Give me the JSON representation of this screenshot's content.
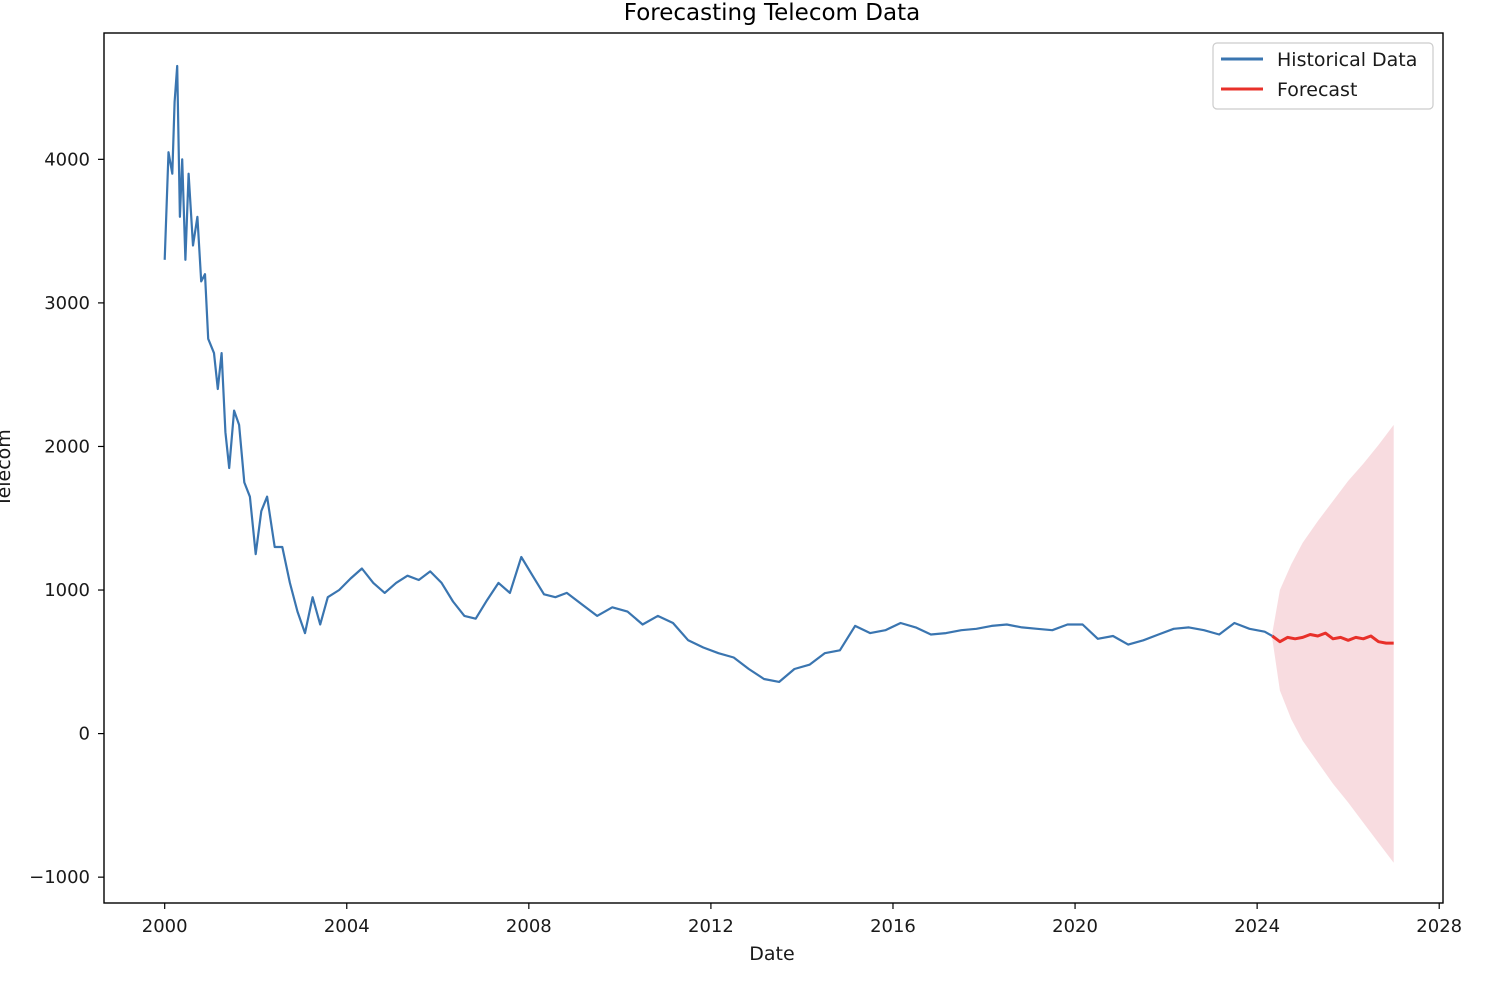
{
  "chart_data": {
    "type": "line",
    "title": "Forecasting Telecom Data",
    "xlabel": "Date",
    "ylabel": "Telecom",
    "xlim": [
      "1998-09-01",
      "2028-02-01"
    ],
    "ylim": [
      -1180,
      4880
    ],
    "xticks": [
      "2000",
      "2004",
      "2008",
      "2012",
      "2016",
      "2020",
      "2024",
      "2028"
    ],
    "yticks": [
      -1000,
      0,
      1000,
      2000,
      3000,
      4000
    ],
    "grid": false,
    "legend": {
      "position": "top-right",
      "entries": [
        {
          "label": "Historical Data",
          "color": "#3a75b0"
        },
        {
          "label": "Forecast",
          "color": "#e8302a"
        }
      ]
    },
    "series": [
      {
        "name": "Historical Data",
        "color": "#3a75b0",
        "points": [
          [
            "2000-01-01",
            3300
          ],
          [
            "2000-02-01",
            4050
          ],
          [
            "2000-03-01",
            3900
          ],
          [
            "2000-03-20",
            4400
          ],
          [
            "2000-04-10",
            4650
          ],
          [
            "2000-05-01",
            3600
          ],
          [
            "2000-05-20",
            4000
          ],
          [
            "2000-06-15",
            3300
          ],
          [
            "2000-07-10",
            3900
          ],
          [
            "2000-08-15",
            3400
          ],
          [
            "2000-09-20",
            3600
          ],
          [
            "2000-10-20",
            3150
          ],
          [
            "2000-11-20",
            3200
          ],
          [
            "2000-12-15",
            2750
          ],
          [
            "2001-02-01",
            2650
          ],
          [
            "2001-03-01",
            2400
          ],
          [
            "2001-04-01",
            2650
          ],
          [
            "2001-05-01",
            2100
          ],
          [
            "2001-06-01",
            1850
          ],
          [
            "2001-07-10",
            2250
          ],
          [
            "2001-08-20",
            2150
          ],
          [
            "2001-10-01",
            1750
          ],
          [
            "2001-11-15",
            1650
          ],
          [
            "2002-01-01",
            1250
          ],
          [
            "2002-02-15",
            1550
          ],
          [
            "2002-04-01",
            1650
          ],
          [
            "2002-06-01",
            1300
          ],
          [
            "2002-08-01",
            1300
          ],
          [
            "2002-10-01",
            1050
          ],
          [
            "2002-12-01",
            850
          ],
          [
            "2003-02-01",
            700
          ],
          [
            "2003-04-01",
            950
          ],
          [
            "2003-06-01",
            760
          ],
          [
            "2003-08-01",
            950
          ],
          [
            "2003-11-01",
            1000
          ],
          [
            "2004-02-01",
            1080
          ],
          [
            "2004-05-01",
            1150
          ],
          [
            "2004-08-01",
            1050
          ],
          [
            "2004-11-01",
            980
          ],
          [
            "2005-02-01",
            1050
          ],
          [
            "2005-05-01",
            1100
          ],
          [
            "2005-08-01",
            1070
          ],
          [
            "2005-11-01",
            1130
          ],
          [
            "2006-02-01",
            1050
          ],
          [
            "2006-05-01",
            920
          ],
          [
            "2006-08-01",
            820
          ],
          [
            "2006-11-01",
            800
          ],
          [
            "2007-02-01",
            930
          ],
          [
            "2007-05-01",
            1050
          ],
          [
            "2007-08-01",
            980
          ],
          [
            "2007-11-01",
            1230
          ],
          [
            "2008-02-01",
            1100
          ],
          [
            "2008-05-01",
            970
          ],
          [
            "2008-08-01",
            950
          ],
          [
            "2008-11-01",
            980
          ],
          [
            "2009-03-01",
            900
          ],
          [
            "2009-07-01",
            820
          ],
          [
            "2009-11-01",
            880
          ],
          [
            "2010-03-01",
            850
          ],
          [
            "2010-07-01",
            760
          ],
          [
            "2010-11-01",
            820
          ],
          [
            "2011-03-01",
            770
          ],
          [
            "2011-07-01",
            650
          ],
          [
            "2011-11-01",
            600
          ],
          [
            "2012-03-01",
            560
          ],
          [
            "2012-07-01",
            530
          ],
          [
            "2012-11-01",
            450
          ],
          [
            "2013-03-01",
            380
          ],
          [
            "2013-07-01",
            360
          ],
          [
            "2013-11-01",
            450
          ],
          [
            "2014-03-01",
            480
          ],
          [
            "2014-07-01",
            560
          ],
          [
            "2014-11-01",
            580
          ],
          [
            "2015-03-01",
            750
          ],
          [
            "2015-07-01",
            700
          ],
          [
            "2015-11-01",
            720
          ],
          [
            "2016-03-01",
            770
          ],
          [
            "2016-07-01",
            740
          ],
          [
            "2016-11-01",
            690
          ],
          [
            "2017-03-01",
            700
          ],
          [
            "2017-07-01",
            720
          ],
          [
            "2017-11-01",
            730
          ],
          [
            "2018-03-01",
            750
          ],
          [
            "2018-07-01",
            760
          ],
          [
            "2018-11-01",
            740
          ],
          [
            "2019-03-01",
            730
          ],
          [
            "2019-07-01",
            720
          ],
          [
            "2019-11-01",
            760
          ],
          [
            "2020-03-01",
            760
          ],
          [
            "2020-07-01",
            660
          ],
          [
            "2020-11-01",
            680
          ],
          [
            "2021-03-01",
            620
          ],
          [
            "2021-07-01",
            650
          ],
          [
            "2021-11-01",
            690
          ],
          [
            "2022-03-01",
            730
          ],
          [
            "2022-07-01",
            740
          ],
          [
            "2022-11-01",
            720
          ],
          [
            "2023-03-01",
            690
          ],
          [
            "2023-07-01",
            770
          ],
          [
            "2023-11-01",
            730
          ],
          [
            "2024-03-01",
            710
          ],
          [
            "2024-05-01",
            680
          ]
        ]
      },
      {
        "name": "Forecast",
        "color": "#e8302a",
        "points": [
          [
            "2024-05-01",
            680
          ],
          [
            "2024-07-01",
            640
          ],
          [
            "2024-09-01",
            670
          ],
          [
            "2024-11-01",
            660
          ],
          [
            "2025-01-01",
            670
          ],
          [
            "2025-03-01",
            690
          ],
          [
            "2025-05-01",
            680
          ],
          [
            "2025-07-01",
            700
          ],
          [
            "2025-09-01",
            660
          ],
          [
            "2025-11-01",
            670
          ],
          [
            "2026-01-01",
            650
          ],
          [
            "2026-03-01",
            670
          ],
          [
            "2026-05-01",
            660
          ],
          [
            "2026-07-01",
            680
          ],
          [
            "2026-09-01",
            640
          ],
          [
            "2026-11-01",
            630
          ],
          [
            "2027-01-01",
            630
          ]
        ]
      }
    ],
    "confidence_band": {
      "series": "Forecast",
      "color": "#f8dce0",
      "upper": [
        [
          "2024-05-01",
          700
        ],
        [
          "2024-07-01",
          1000
        ],
        [
          "2024-10-01",
          1180
        ],
        [
          "2025-01-01",
          1330
        ],
        [
          "2025-05-01",
          1480
        ],
        [
          "2025-09-01",
          1620
        ],
        [
          "2026-01-01",
          1760
        ],
        [
          "2026-05-01",
          1880
        ],
        [
          "2026-09-01",
          2010
        ],
        [
          "2027-01-01",
          2150
        ]
      ],
      "lower": [
        [
          "2024-05-01",
          660
        ],
        [
          "2024-07-01",
          300
        ],
        [
          "2024-10-01",
          100
        ],
        [
          "2025-01-01",
          -50
        ],
        [
          "2025-05-01",
          -200
        ],
        [
          "2025-09-01",
          -350
        ],
        [
          "2026-01-01",
          -480
        ],
        [
          "2026-05-01",
          -620
        ],
        [
          "2026-09-01",
          -760
        ],
        [
          "2027-01-01",
          -900
        ]
      ]
    }
  }
}
